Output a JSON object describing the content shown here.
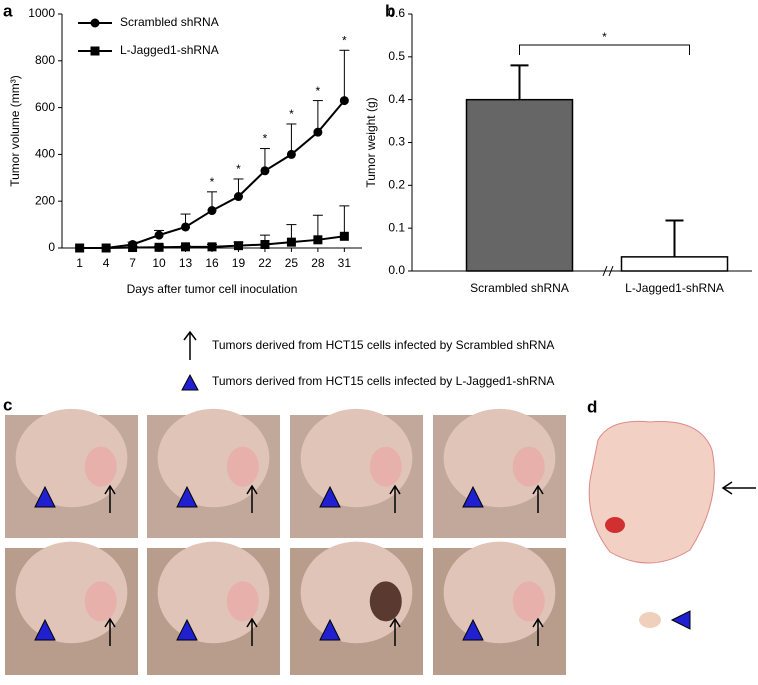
{
  "panel_labels": [
    "a",
    "b",
    "c",
    "d"
  ],
  "photo_legend": [
    "Tumors derived from HCT15 cells infected by Scrambled shRNA",
    "Tumors derived from HCT15 cells infected by L-Jagged1-shRNA"
  ],
  "chart_data": [
    {
      "type": "line",
      "xlabel": "Days after tumor cell inoculation",
      "ylabel": "Tumor volume (mm³)",
      "x": [
        1,
        4,
        7,
        10,
        13,
        16,
        19,
        22,
        25,
        28,
        31
      ],
      "xlim": [
        -1,
        33
      ],
      "xticks": [
        1,
        4,
        7,
        10,
        13,
        16,
        19,
        22,
        25,
        28,
        31
      ],
      "ylim": [
        0,
        1000
      ],
      "yticks": [
        0,
        200,
        400,
        600,
        800,
        1000
      ],
      "series": [
        {
          "name": "Scrambled shRNA",
          "color": "#000000",
          "marker": "circle",
          "values": [
            0,
            0,
            15,
            55,
            90,
            160,
            220,
            330,
            400,
            495,
            630
          ],
          "errors": [
            0,
            0,
            10,
            20,
            55,
            80,
            75,
            95,
            130,
            135,
            215
          ]
        },
        {
          "name": "L-Jagged1-shRNA",
          "color": "#000000",
          "marker": "square",
          "values": [
            0,
            0,
            2,
            3,
            5,
            5,
            10,
            15,
            25,
            35,
            50
          ],
          "errors": [
            0,
            0,
            5,
            5,
            5,
            10,
            15,
            40,
            75,
            105,
            130
          ]
        }
      ],
      "significant": [
        null,
        null,
        null,
        null,
        null,
        "*",
        "*",
        "*",
        "*",
        "*",
        "*"
      ],
      "legend": "upper left",
      "grid": false
    },
    {
      "type": "bar",
      "ylabel": "Tumor weight (g)",
      "categories": [
        "Scrambled shRNA",
        "L-Jagged1-shRNA"
      ],
      "values": [
        0.4,
        0.033
      ],
      "errors": [
        0.08,
        0.085
      ],
      "colors": [
        "#666666",
        "#ffffff"
      ],
      "ylim": [
        0,
        0.6
      ],
      "yticks": [
        {
          "value": 0,
          "label": "0.0"
        },
        0.1,
        0.2,
        0.3,
        0.4,
        0.5,
        0.6
      ],
      "significance": "*",
      "grid": false
    }
  ]
}
